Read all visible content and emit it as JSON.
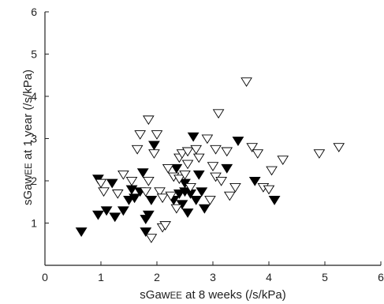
{
  "chart_data": {
    "type": "scatter",
    "xlabel": {
      "pre": "sGaw",
      "sc": "EE",
      "post": " at 8 weeks (/s/kPa)"
    },
    "ylabel": {
      "pre": "sGaw",
      "sc": "EE",
      "post": " at 1 year (/s/kPa)"
    },
    "xlim": [
      0,
      6
    ],
    "ylim": [
      0,
      6
    ],
    "x_ticks": [
      "0",
      "1",
      "2",
      "3",
      "4",
      "5",
      "6"
    ],
    "y_ticks": [
      "1",
      "2",
      "3",
      "4",
      "5",
      "6"
    ],
    "grid": false,
    "series": [
      {
        "marker": "filled-down-triangle",
        "color": "#000000",
        "points": [
          [
            0.65,
            0.8
          ],
          [
            0.95,
            2.05
          ],
          [
            0.95,
            1.2
          ],
          [
            1.1,
            1.3
          ],
          [
            1.2,
            1.95
          ],
          [
            1.25,
            1.15
          ],
          [
            1.4,
            1.3
          ],
          [
            1.5,
            1.55
          ],
          [
            1.55,
            1.8
          ],
          [
            1.6,
            1.6
          ],
          [
            1.7,
            1.75
          ],
          [
            1.75,
            2.2
          ],
          [
            1.8,
            1.1
          ],
          [
            1.8,
            0.8
          ],
          [
            1.85,
            1.2
          ],
          [
            1.9,
            1.55
          ],
          [
            1.95,
            2.85
          ],
          [
            2.3,
            1.55
          ],
          [
            2.35,
            2.3
          ],
          [
            2.4,
            1.7
          ],
          [
            2.45,
            1.45
          ],
          [
            2.5,
            1.75
          ],
          [
            2.5,
            1.95
          ],
          [
            2.55,
            1.25
          ],
          [
            2.6,
            1.7
          ],
          [
            2.65,
            3.05
          ],
          [
            2.7,
            1.55
          ],
          [
            2.75,
            2.15
          ],
          [
            2.8,
            1.75
          ],
          [
            2.85,
            1.35
          ],
          [
            3.25,
            2.3
          ],
          [
            3.45,
            2.95
          ],
          [
            3.75,
            2.0
          ],
          [
            4.1,
            1.55
          ]
        ]
      },
      {
        "marker": "open-down-triangle",
        "color": "#000000",
        "points": [
          [
            1.0,
            1.95
          ],
          [
            1.05,
            1.75
          ],
          [
            1.3,
            1.7
          ],
          [
            1.4,
            2.15
          ],
          [
            1.55,
            2.0
          ],
          [
            1.65,
            2.75
          ],
          [
            1.7,
            3.1
          ],
          [
            1.8,
            1.75
          ],
          [
            1.85,
            3.45
          ],
          [
            1.85,
            2.0
          ],
          [
            1.9,
            0.65
          ],
          [
            1.95,
            2.65
          ],
          [
            2.0,
            3.1
          ],
          [
            2.05,
            1.75
          ],
          [
            2.1,
            1.6
          ],
          [
            2.1,
            0.9
          ],
          [
            2.15,
            0.95
          ],
          [
            2.2,
            2.3
          ],
          [
            2.25,
            1.65
          ],
          [
            2.3,
            2.1
          ],
          [
            2.35,
            1.35
          ],
          [
            2.4,
            2.05
          ],
          [
            2.4,
            2.55
          ],
          [
            2.45,
            2.65
          ],
          [
            2.5,
            2.15
          ],
          [
            2.55,
            2.4
          ],
          [
            2.55,
            2.7
          ],
          [
            2.6,
            1.85
          ],
          [
            2.7,
            2.75
          ],
          [
            2.75,
            2.55
          ],
          [
            2.9,
            3.0
          ],
          [
            2.95,
            1.55
          ],
          [
            3.0,
            2.35
          ],
          [
            3.05,
            2.1
          ],
          [
            3.05,
            2.75
          ],
          [
            3.1,
            3.6
          ],
          [
            3.15,
            2.0
          ],
          [
            3.25,
            2.7
          ],
          [
            3.3,
            1.65
          ],
          [
            3.4,
            1.85
          ],
          [
            3.6,
            4.35
          ],
          [
            3.7,
            2.8
          ],
          [
            3.8,
            2.65
          ],
          [
            3.9,
            1.85
          ],
          [
            4.0,
            1.8
          ],
          [
            4.05,
            2.25
          ],
          [
            4.25,
            2.5
          ],
          [
            4.9,
            2.65
          ],
          [
            5.25,
            2.8
          ]
        ]
      }
    ]
  }
}
